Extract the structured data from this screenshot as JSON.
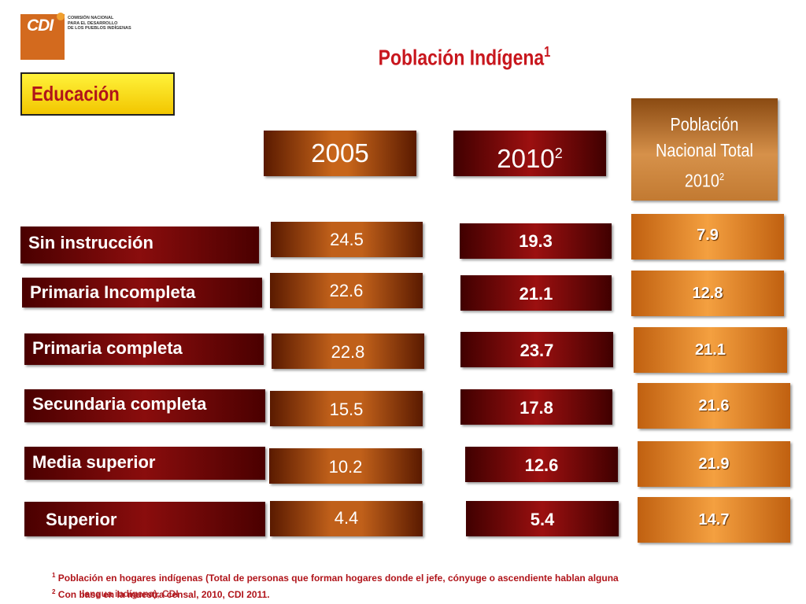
{
  "logo": {
    "letters": "CDI",
    "org_line1": "COMISIÓN NACIONAL",
    "org_line2": "PARA EL DESARROLLO",
    "org_line3": "DE LOS PUEBLOS INDÍGENAS"
  },
  "title": {
    "text": "Población Indígena",
    "sup": "1"
  },
  "section": "Educación",
  "headers": {
    "col2005": {
      "text": "2005"
    },
    "col2010": {
      "text": "2010",
      "sup": "2"
    },
    "nacional": {
      "line1": "Población",
      "line2": "Nacional Total",
      "line3": "2010",
      "sup": "2"
    }
  },
  "rows": [
    {
      "label": "Sin instrucción",
      "v2005": "24.5",
      "v2010": "19.3",
      "nacional": "7.9"
    },
    {
      "label": "Primaria Incompleta",
      "v2005": "22.6",
      "v2010": "21.1",
      "nacional": "12.8"
    },
    {
      "label": "Primaria completa",
      "v2005": "22.8",
      "v2010": "23.7",
      "nacional": "21.1"
    },
    {
      "label": "Secundaria completa",
      "v2005": "15.5",
      "v2010": "17.8",
      "nacional": "21.6"
    },
    {
      "label": "Media superior",
      "v2005": "10.2",
      "v2010": "12.6",
      "nacional": "21.9"
    },
    {
      "label": "Superior",
      "v2005": "4.4",
      "v2010": "5.4",
      "nacional": "14.7"
    }
  ],
  "footnotes": [
    {
      "sup": "1",
      "text": " Población en hogares  indígenas (Total de personas que forman hogares donde el jefe, cónyuge  o ascendiente hablan alguna"
    },
    {
      "sup": "2",
      "text": " Con base en la muestra censal, 2010, CDI 2011."
    },
    {
      "text": "lengua indígena), CDI"
    }
  ],
  "colors": {
    "title": "#c8161d",
    "section_bg": "#fff23a",
    "label_bg": "#8a0d0d",
    "v2005_bg": "#c0601a",
    "v2010_bg": "#9c1010",
    "nacional_bg": "#f4a040"
  }
}
